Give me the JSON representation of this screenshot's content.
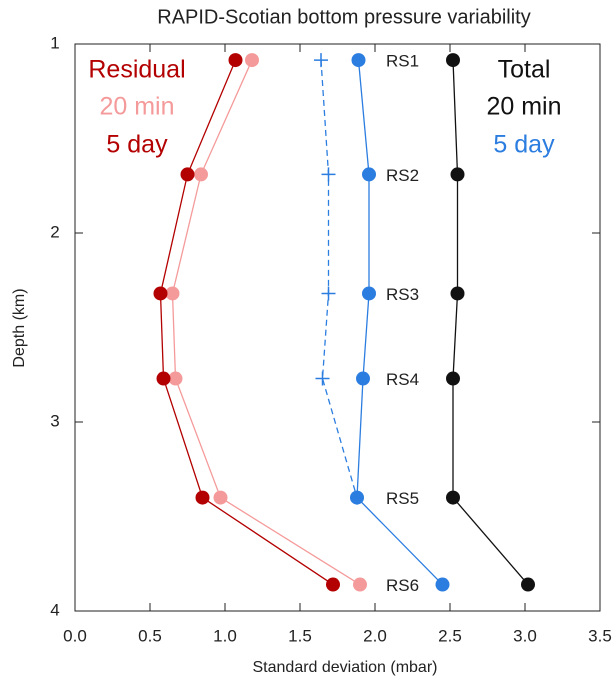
{
  "chart_data": {
    "type": "line",
    "title": "RAPID-Scotian bottom pressure variability",
    "xlabel": "Standard deviation (mbar)",
    "ylabel": "Depth (km)",
    "xlim": [
      0,
      3.5
    ],
    "ylim": [
      1,
      4
    ],
    "y_inverted": true,
    "xticks": [
      {
        "value": 0,
        "label": "0.0"
      },
      {
        "value": 0.5,
        "label": "0.5"
      },
      {
        "value": 1,
        "label": "1.0"
      },
      {
        "value": 1.5,
        "label": "1.5"
      },
      {
        "value": 2,
        "label": "2.0"
      },
      {
        "value": 2.5,
        "label": "2.5"
      },
      {
        "value": 3,
        "label": "3.0"
      },
      {
        "value": 3.5,
        "label": "3.5"
      }
    ],
    "yticks": [
      1,
      2,
      3,
      4
    ],
    "y": [
      1.085,
      1.69,
      2.32,
      2.77,
      3.4,
      3.86
    ],
    "point_labels": [
      "RS1",
      "RS2",
      "RS3",
      "RS4",
      "RS5",
      "RS6"
    ],
    "legend_groups": [
      {
        "title": "Residual",
        "color": "#b30000",
        "series": [
          {
            "name": "20 min",
            "color": "#f59a9a",
            "values": [
              1.18,
              0.84,
              0.65,
              0.67,
              0.97,
              1.9
            ]
          },
          {
            "name": "5 day",
            "color": "#b30000",
            "values": [
              1.07,
              0.75,
              0.57,
              0.59,
              0.85,
              1.72
            ]
          }
        ]
      },
      {
        "title": "Total",
        "color": "#111111",
        "series": [
          {
            "name": "20 min",
            "color": "#111111",
            "values": [
              2.52,
              2.55,
              2.55,
              2.52,
              2.52,
              3.02
            ]
          },
          {
            "name": "5 day",
            "color": "#2b7de0",
            "values": [
              1.89,
              1.96,
              1.96,
              1.92,
              1.88,
              2.45
            ]
          }
        ]
      }
    ],
    "series": [
      {
        "color": "#2b7de0",
        "dashed": true,
        "marker": "+",
        "values": [
          1.64,
          1.69,
          1.69,
          1.65,
          1.88,
          null
        ]
      }
    ]
  }
}
